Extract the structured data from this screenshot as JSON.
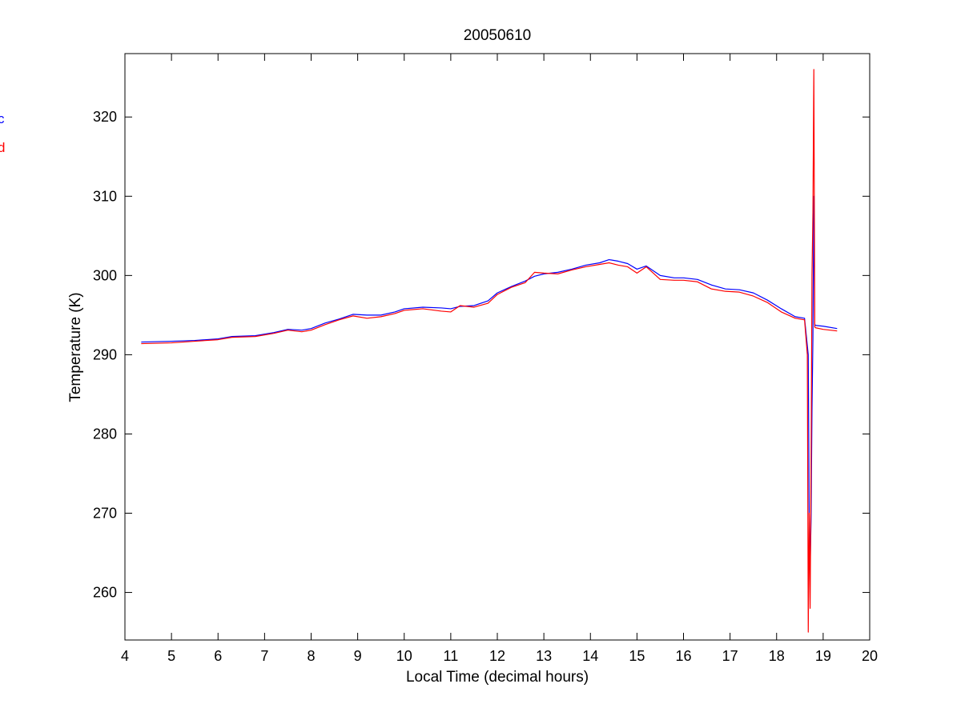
{
  "chart_data": {
    "type": "line",
    "title": "20050610",
    "xlabel": "Local Time (decimal hours)",
    "ylabel": "Temperature (K)",
    "xlim": [
      4,
      20
    ],
    "ylim": [
      254,
      328
    ],
    "xticks": [
      4,
      5,
      6,
      7,
      8,
      9,
      10,
      11,
      12,
      13,
      14,
      15,
      16,
      17,
      18,
      19,
      20
    ],
    "yticks": [
      260,
      270,
      280,
      290,
      300,
      310,
      320
    ],
    "grid": false,
    "legend": {
      "placement": "left",
      "entries": [
        "c",
        "d"
      ]
    },
    "series": [
      {
        "name": "c",
        "color": "#0000ff",
        "x": [
          4.35,
          5.0,
          5.5,
          6.0,
          6.3,
          6.8,
          7.2,
          7.5,
          7.8,
          8.0,
          8.3,
          8.6,
          8.9,
          9.2,
          9.5,
          9.8,
          10.0,
          10.4,
          10.8,
          11.0,
          11.2,
          11.5,
          11.8,
          12.0,
          12.3,
          12.6,
          12.8,
          13.0,
          13.3,
          13.6,
          13.9,
          14.2,
          14.4,
          14.6,
          14.8,
          15.0,
          15.2,
          15.5,
          15.8,
          16.0,
          16.3,
          16.6,
          16.9,
          17.2,
          17.5,
          17.8,
          18.1,
          18.4,
          18.6,
          18.68,
          18.7,
          18.72,
          18.74,
          18.76,
          18.78,
          18.8,
          18.82,
          18.84,
          19.0,
          19.3
        ],
        "y": [
          291.6,
          291.7,
          291.8,
          292.0,
          292.3,
          292.4,
          292.8,
          293.2,
          293.1,
          293.3,
          294.0,
          294.5,
          295.1,
          295.0,
          295.0,
          295.4,
          295.8,
          296.0,
          295.9,
          295.8,
          296.1,
          296.2,
          296.8,
          297.8,
          298.6,
          299.3,
          299.9,
          300.2,
          300.4,
          300.8,
          301.3,
          301.6,
          302.0,
          301.8,
          301.5,
          300.8,
          301.2,
          300.0,
          299.7,
          299.7,
          299.5,
          298.8,
          298.3,
          298.2,
          297.8,
          296.9,
          295.8,
          294.8,
          294.6,
          290.0,
          270.0,
          263.0,
          269.0,
          283.0,
          292.0,
          310.0,
          293.8,
          293.7,
          293.6,
          293.3
        ]
      },
      {
        "name": "d",
        "color": "#ff0000",
        "x": [
          4.35,
          5.0,
          5.5,
          6.0,
          6.3,
          6.8,
          7.2,
          7.5,
          7.8,
          8.0,
          8.3,
          8.6,
          8.9,
          9.2,
          9.5,
          9.8,
          10.0,
          10.4,
          10.8,
          11.0,
          11.2,
          11.5,
          11.8,
          12.0,
          12.3,
          12.6,
          12.8,
          13.0,
          13.3,
          13.6,
          13.9,
          14.2,
          14.4,
          14.6,
          14.8,
          15.0,
          15.2,
          15.5,
          15.8,
          16.0,
          16.3,
          16.6,
          16.9,
          17.2,
          17.5,
          17.8,
          18.1,
          18.4,
          18.6,
          18.66,
          18.68,
          18.7,
          18.72,
          18.74,
          18.76,
          18.78,
          18.8,
          18.82,
          18.84,
          19.0,
          19.3
        ],
        "y": [
          291.4,
          291.5,
          291.7,
          291.9,
          292.2,
          292.3,
          292.7,
          293.1,
          292.9,
          293.1,
          293.8,
          294.4,
          294.9,
          294.6,
          294.8,
          295.2,
          295.6,
          295.8,
          295.5,
          295.4,
          296.2,
          296.0,
          296.5,
          297.6,
          298.5,
          299.1,
          300.4,
          300.3,
          300.2,
          300.7,
          301.1,
          301.4,
          301.6,
          301.3,
          301.1,
          300.3,
          301.1,
          299.5,
          299.4,
          299.4,
          299.2,
          298.3,
          298.0,
          297.9,
          297.4,
          296.6,
          295.4,
          294.6,
          294.4,
          290.0,
          255.0,
          270.0,
          258.0,
          275.0,
          300.0,
          308.0,
          326.0,
          293.5,
          293.4,
          293.2,
          293.0
        ]
      }
    ]
  }
}
